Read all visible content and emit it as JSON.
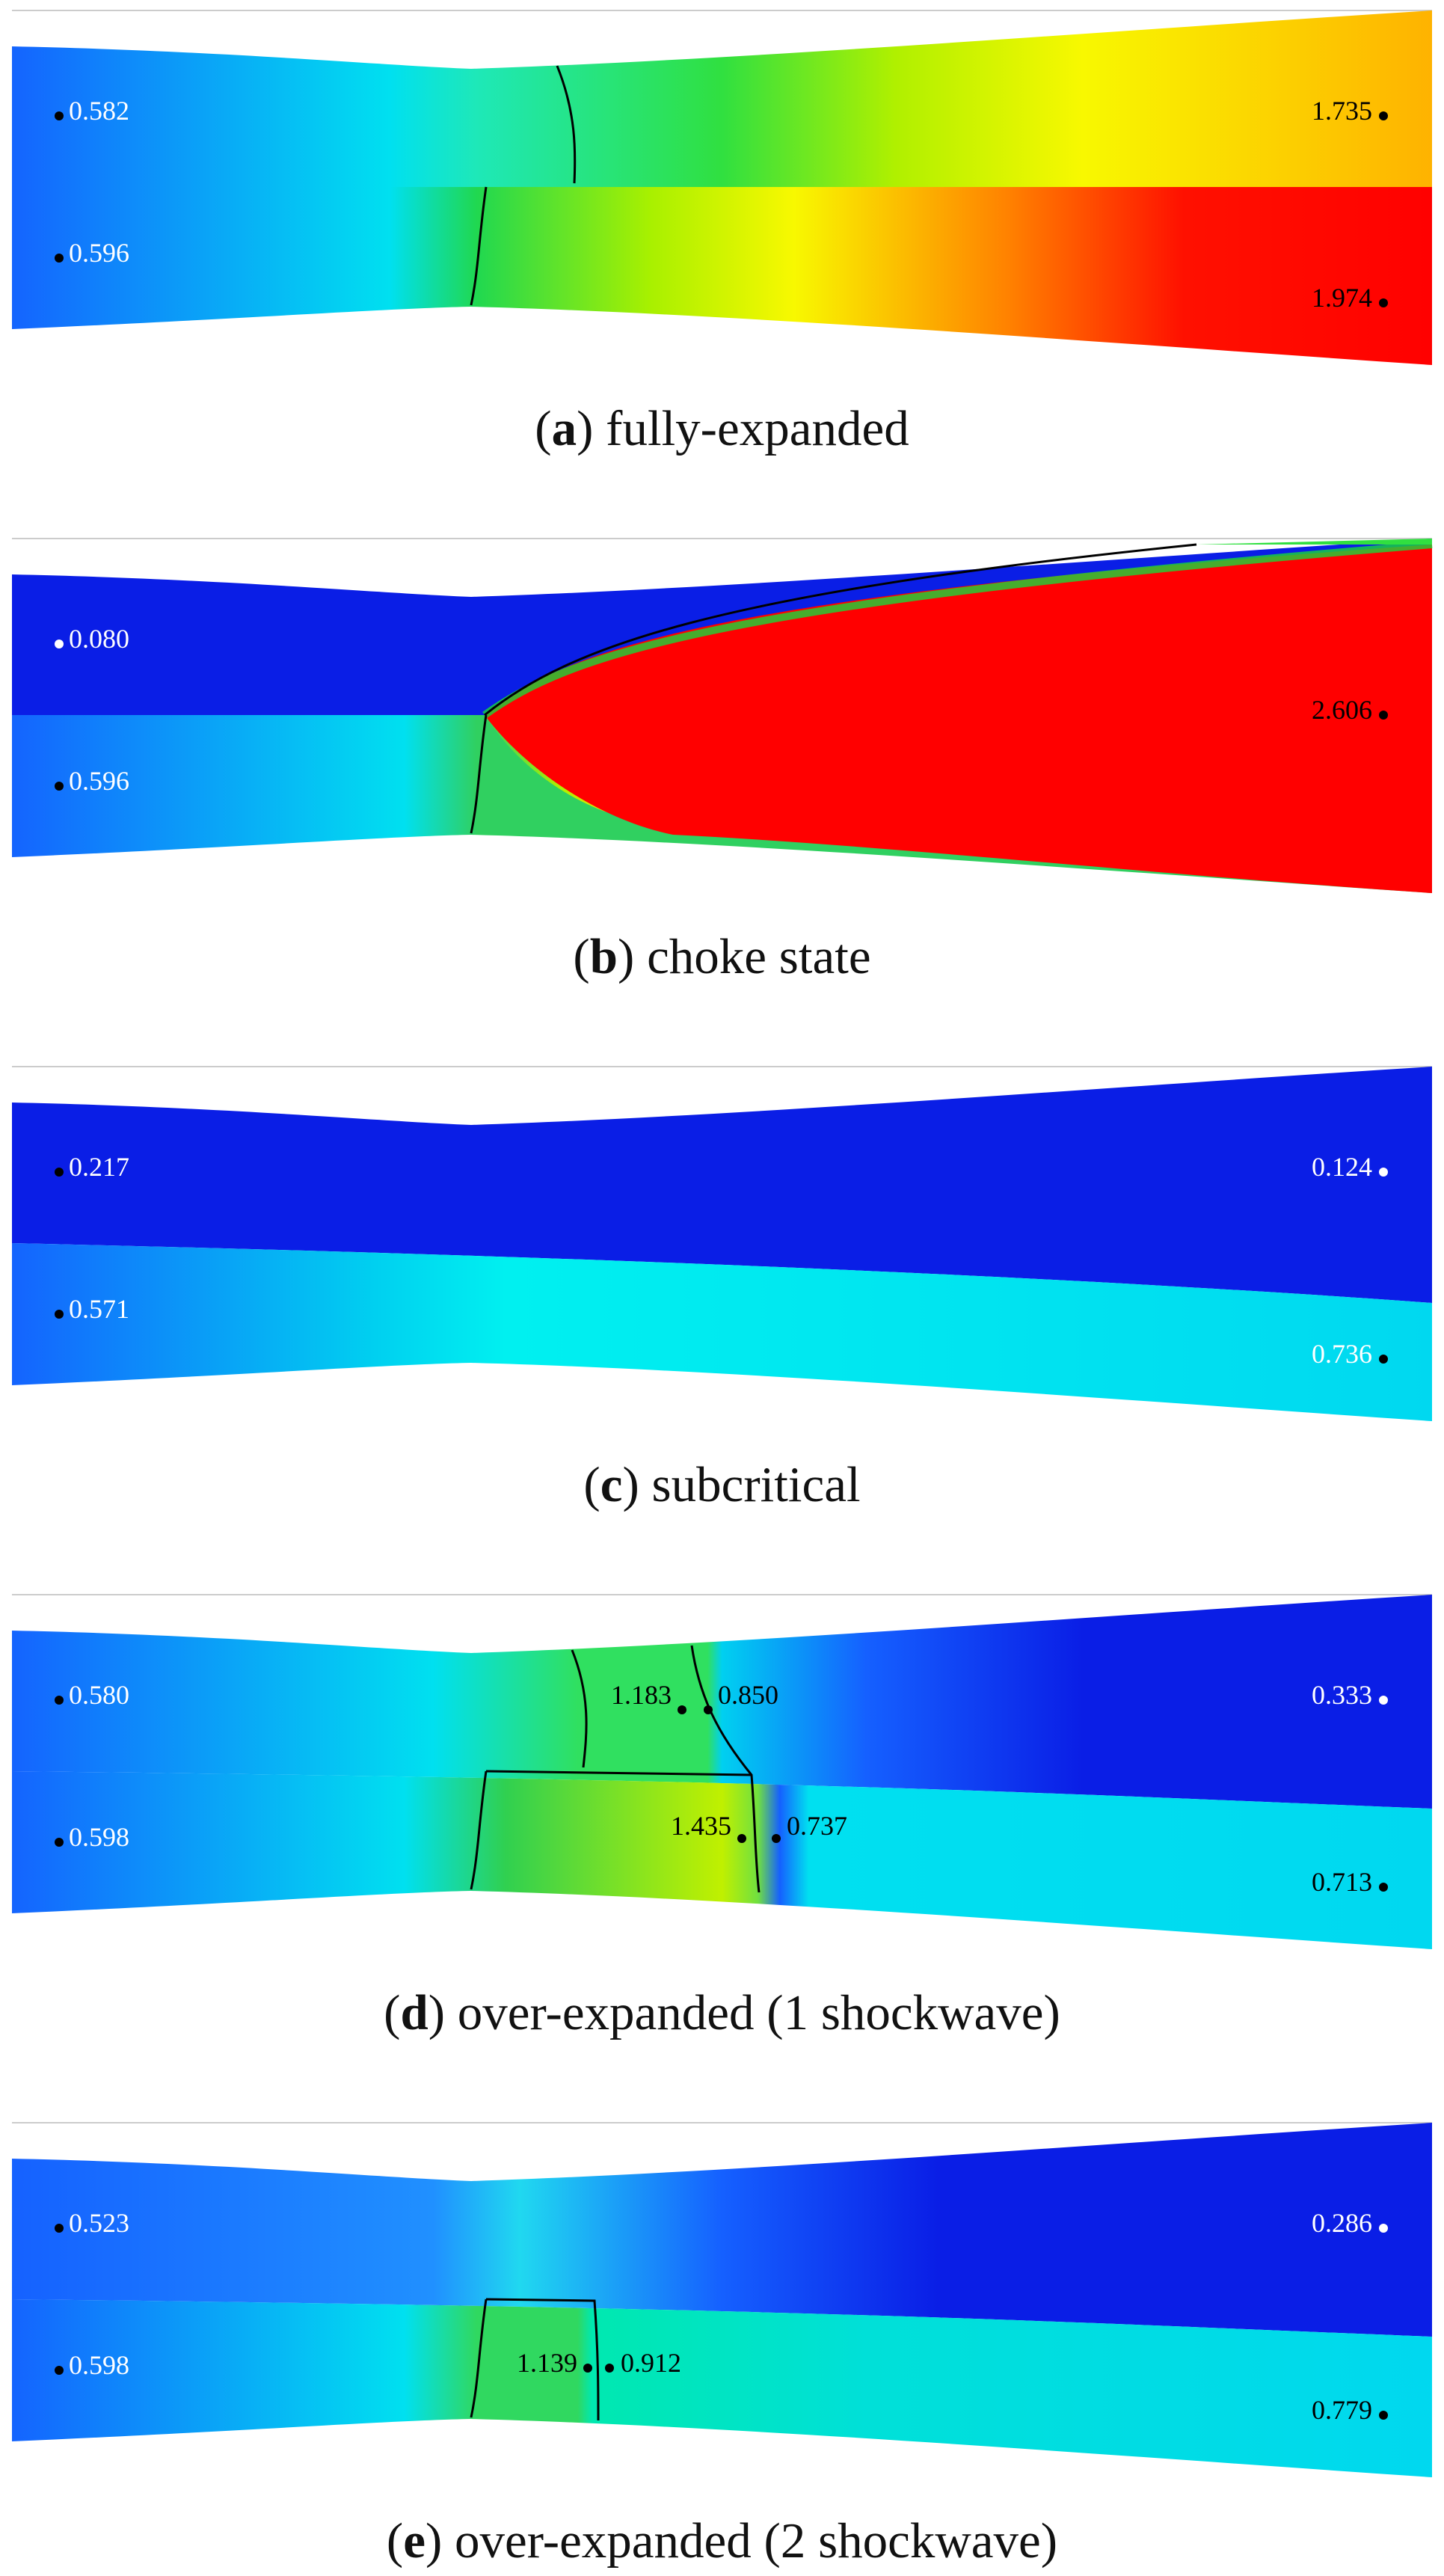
{
  "panels": [
    {
      "id": "a",
      "letter": "a",
      "title": "fully-expanded",
      "points": [
        {
          "label": "0.582",
          "dot": "black",
          "text": "white"
        },
        {
          "label": "0.596",
          "dot": "black",
          "text": "white"
        },
        {
          "label": "1.735",
          "dot": "black",
          "text": "black"
        },
        {
          "label": "1.974",
          "dot": "black",
          "text": "black"
        }
      ]
    },
    {
      "id": "b",
      "letter": "b",
      "title": "choke state",
      "points": [
        {
          "label": "0.080",
          "dot": "white",
          "text": "white"
        },
        {
          "label": "0.596",
          "dot": "black",
          "text": "white"
        },
        {
          "label": "2.606",
          "dot": "black",
          "text": "black"
        }
      ]
    },
    {
      "id": "c",
      "letter": "c",
      "title": "subcritical",
      "points": [
        {
          "label": "0.217",
          "dot": "black",
          "text": "white"
        },
        {
          "label": "0.571",
          "dot": "black",
          "text": "white"
        },
        {
          "label": "0.124",
          "dot": "white",
          "text": "white"
        },
        {
          "label": "0.736",
          "dot": "black",
          "text": "white"
        }
      ]
    },
    {
      "id": "d",
      "letter": "d",
      "title": "over-expanded (1 shockwave)",
      "points": [
        {
          "label": "0.580",
          "dot": "black",
          "text": "white"
        },
        {
          "label": "0.598",
          "dot": "black",
          "text": "white"
        },
        {
          "label": "1.183",
          "dot": "black",
          "text": "black"
        },
        {
          "label": "0.850",
          "dot": "black",
          "text": "black"
        },
        {
          "label": "1.435",
          "dot": "black",
          "text": "black"
        },
        {
          "label": "0.737",
          "dot": "black",
          "text": "black"
        },
        {
          "label": "0.333",
          "dot": "white",
          "text": "white"
        },
        {
          "label": "0.713",
          "dot": "black",
          "text": "black"
        }
      ]
    },
    {
      "id": "e",
      "letter": "e",
      "title": "over-expanded (2 shockwave)",
      "points": [
        {
          "label": "0.523",
          "dot": "black",
          "text": "white"
        },
        {
          "label": "0.598",
          "dot": "black",
          "text": "white"
        },
        {
          "label": "1.139",
          "dot": "black",
          "text": "black"
        },
        {
          "label": "0.912",
          "dot": "black",
          "text": "black"
        },
        {
          "label": "0.286",
          "dot": "white",
          "text": "white"
        },
        {
          "label": "0.779",
          "dot": "black",
          "text": "black"
        }
      ]
    }
  ],
  "colors": {
    "blue": "#0a1ee6",
    "mid_blue": "#1e6cff",
    "cyan": "#00e8f0",
    "green": "#18d838",
    "yellow": "#f4f400",
    "orange": "#ffa000",
    "red": "#ff0000"
  }
}
